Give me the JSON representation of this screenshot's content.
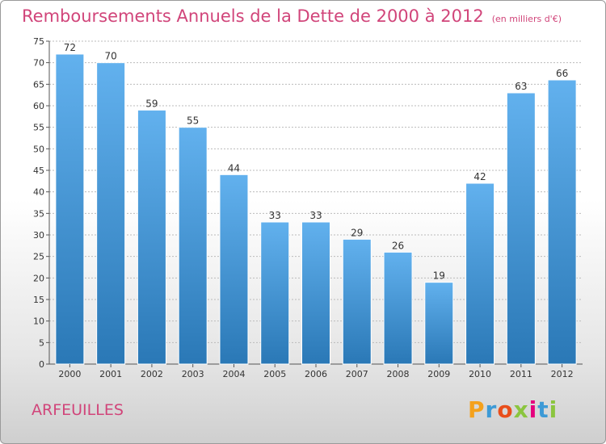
{
  "header": {
    "title": "Remboursements Annuels de la Dette de 2000 à 2012",
    "unit": "(en milliers d'€)"
  },
  "footer": {
    "commune": "ARFEUILLES",
    "logo": {
      "letters": [
        "P",
        "r",
        "o",
        "x",
        "i",
        "t",
        "i"
      ],
      "colors": [
        "#f4a11c",
        "#3d9ad6",
        "#e94e1b",
        "#8bc53f",
        "#e5007d",
        "#3d9ad6",
        "#8bc53f"
      ]
    }
  },
  "chart_data": {
    "type": "bar",
    "title": "Remboursements Annuels de la Dette de 2000 à 2012",
    "categories": [
      "2000",
      "2001",
      "2002",
      "2003",
      "2004",
      "2005",
      "2006",
      "2007",
      "2008",
      "2009",
      "2010",
      "2011",
      "2012"
    ],
    "values": [
      72,
      70,
      59,
      55,
      44,
      33,
      33,
      29,
      26,
      19,
      42,
      63,
      66
    ],
    "ylim": [
      0,
      75
    ],
    "yticks": [
      0,
      5,
      10,
      15,
      20,
      25,
      30,
      35,
      40,
      45,
      50,
      55,
      60,
      65,
      70,
      75
    ],
    "grid": true,
    "colors": {
      "bar_light": "#62b1ee",
      "bar_dark": "#2a78b6",
      "grid": "#bbbbbb",
      "axis": "#555555"
    }
  }
}
